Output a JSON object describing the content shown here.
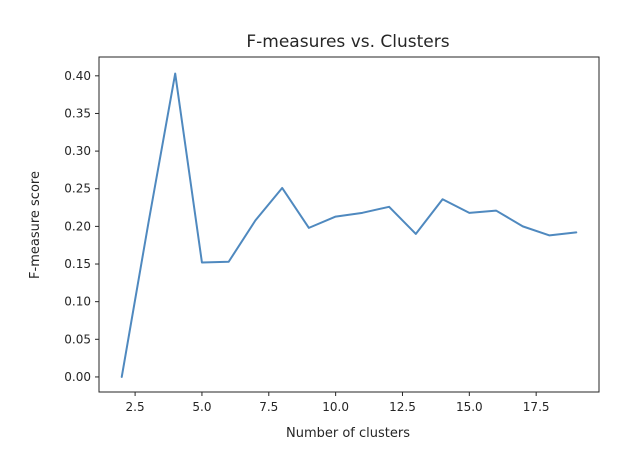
{
  "chart_data": {
    "type": "line",
    "title": "F-measures vs. Clusters",
    "xlabel": "Number of clusters",
    "ylabel": "F-measure score",
    "xlim": [
      1.15,
      19.85
    ],
    "ylim": [
      -0.02,
      0.425
    ],
    "xticks": [
      2.5,
      5.0,
      7.5,
      10.0,
      12.5,
      15.0,
      17.5
    ],
    "xtick_labels": [
      "2.5",
      "5.0",
      "7.5",
      "10.0",
      "12.5",
      "15.0",
      "17.5"
    ],
    "yticks": [
      0.0,
      0.05,
      0.1,
      0.15,
      0.2,
      0.25,
      0.3,
      0.35,
      0.4
    ],
    "ytick_labels": [
      "0.00",
      "0.05",
      "0.10",
      "0.15",
      "0.20",
      "0.25",
      "0.30",
      "0.35",
      "0.40"
    ],
    "grid": false,
    "series": [
      {
        "color": "#4f89bf",
        "x": [
          2,
          3,
          4,
          5,
          6,
          7,
          8,
          9,
          10,
          11,
          12,
          13,
          14,
          15,
          16,
          17,
          18,
          19
        ],
        "y": [
          0.0,
          0.205,
          0.403,
          0.152,
          0.153,
          0.208,
          0.251,
          0.198,
          0.213,
          0.218,
          0.226,
          0.19,
          0.236,
          0.218,
          0.221,
          0.2,
          0.188,
          0.192
        ]
      }
    ]
  }
}
